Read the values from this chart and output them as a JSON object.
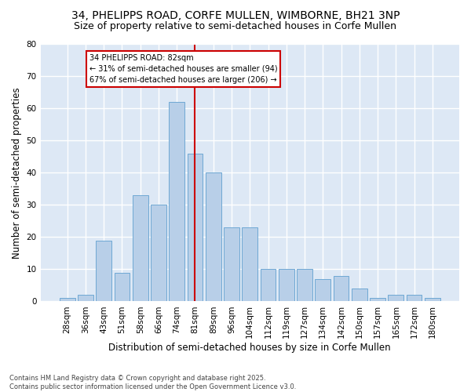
{
  "title_line1": "34, PHELIPPS ROAD, CORFE MULLEN, WIMBORNE, BH21 3NP",
  "title_line2": "Size of property relative to semi-detached houses in Corfe Mullen",
  "xlabel": "Distribution of semi-detached houses by size in Corfe Mullen",
  "ylabel": "Number of semi-detached properties",
  "categories": [
    "28sqm",
    "36sqm",
    "43sqm",
    "51sqm",
    "58sqm",
    "66sqm",
    "74sqm",
    "81sqm",
    "89sqm",
    "96sqm",
    "104sqm",
    "112sqm",
    "119sqm",
    "127sqm",
    "134sqm",
    "142sqm",
    "150sqm",
    "157sqm",
    "165sqm",
    "172sqm",
    "180sqm"
  ],
  "values": [
    1,
    2,
    19,
    9,
    33,
    30,
    62,
    46,
    40,
    23,
    23,
    10,
    10,
    10,
    7,
    8,
    4,
    1,
    2,
    2,
    1
  ],
  "bar_color": "#b8cfe8",
  "bar_edge_color": "#6fa8d4",
  "background_color": "#dde8f5",
  "grid_color": "#ffffff",
  "property_bin_index": 7,
  "annotation_text": "34 PHELIPPS ROAD: 82sqm\n← 31% of semi-detached houses are smaller (94)\n67% of semi-detached houses are larger (206) →",
  "vline_color": "#cc0000",
  "annotation_box_color": "#cc0000",
  "ylim": [
    0,
    80
  ],
  "yticks": [
    0,
    10,
    20,
    30,
    40,
    50,
    60,
    70,
    80
  ],
  "footnote": "Contains HM Land Registry data © Crown copyright and database right 2025.\nContains public sector information licensed under the Open Government Licence v3.0.",
  "title_fontsize": 10,
  "subtitle_fontsize": 9,
  "tick_fontsize": 7.5,
  "label_fontsize": 8.5,
  "footnote_fontsize": 6.0
}
